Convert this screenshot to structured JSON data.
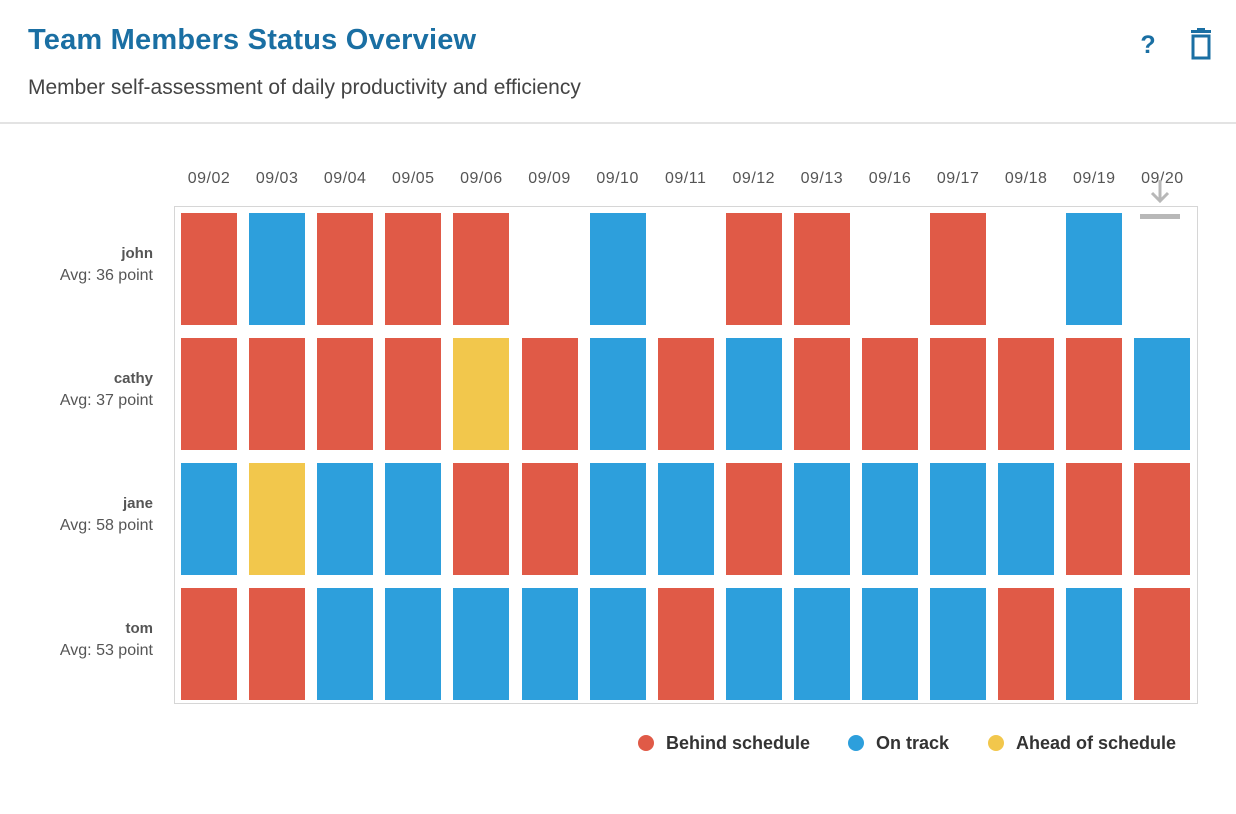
{
  "header": {
    "title": "Team Members Status Overview",
    "subtitle": "Member self-assessment of daily productivity and efficiency",
    "help_label": "?",
    "help_icon": "help-icon",
    "delete_icon": "trash-icon"
  },
  "chart_data": {
    "type": "heatmap",
    "title": "",
    "xlabel": "",
    "ylabel": "",
    "x": [
      "09/02",
      "09/03",
      "09/04",
      "09/05",
      "09/06",
      "09/09",
      "09/10",
      "09/11",
      "09/12",
      "09/13",
      "09/16",
      "09/17",
      "09/18",
      "09/19",
      "09/20"
    ],
    "rows": [
      {
        "name": "john",
        "avg": "Avg: 36 point",
        "values": [
          "behind",
          "ontrack",
          "behind",
          "behind",
          "behind",
          null,
          "ontrack",
          null,
          "behind",
          "behind",
          null,
          "behind",
          null,
          "ontrack",
          null
        ]
      },
      {
        "name": "cathy",
        "avg": "Avg: 37 point",
        "values": [
          "behind",
          "behind",
          "behind",
          "behind",
          "ahead",
          "behind",
          "ontrack",
          "behind",
          "ontrack",
          "behind",
          "behind",
          "behind",
          "behind",
          "behind",
          "ontrack"
        ]
      },
      {
        "name": "jane",
        "avg": "Avg: 58 point",
        "values": [
          "ontrack",
          "ahead",
          "ontrack",
          "ontrack",
          "behind",
          "behind",
          "ontrack",
          "ontrack",
          "behind",
          "ontrack",
          "ontrack",
          "ontrack",
          "ontrack",
          "behind",
          "behind"
        ]
      },
      {
        "name": "tom",
        "avg": "Avg: 53 point",
        "values": [
          "behind",
          "behind",
          "ontrack",
          "ontrack",
          "ontrack",
          "ontrack",
          "ontrack",
          "behind",
          "ontrack",
          "ontrack",
          "ontrack",
          "ontrack",
          "behind",
          "ontrack",
          "behind"
        ]
      }
    ],
    "categories": [
      {
        "key": "behind",
        "label": "Behind schedule",
        "color": "#e05a47"
      },
      {
        "key": "ontrack",
        "label": "On track",
        "color": "#2d9fdc"
      },
      {
        "key": "ahead",
        "label": "Ahead of schedule",
        "color": "#f2c74c"
      }
    ],
    "legend_position": "bottom-right",
    "grid": false
  },
  "toolbar": {
    "download_icon": "download-icon"
  }
}
